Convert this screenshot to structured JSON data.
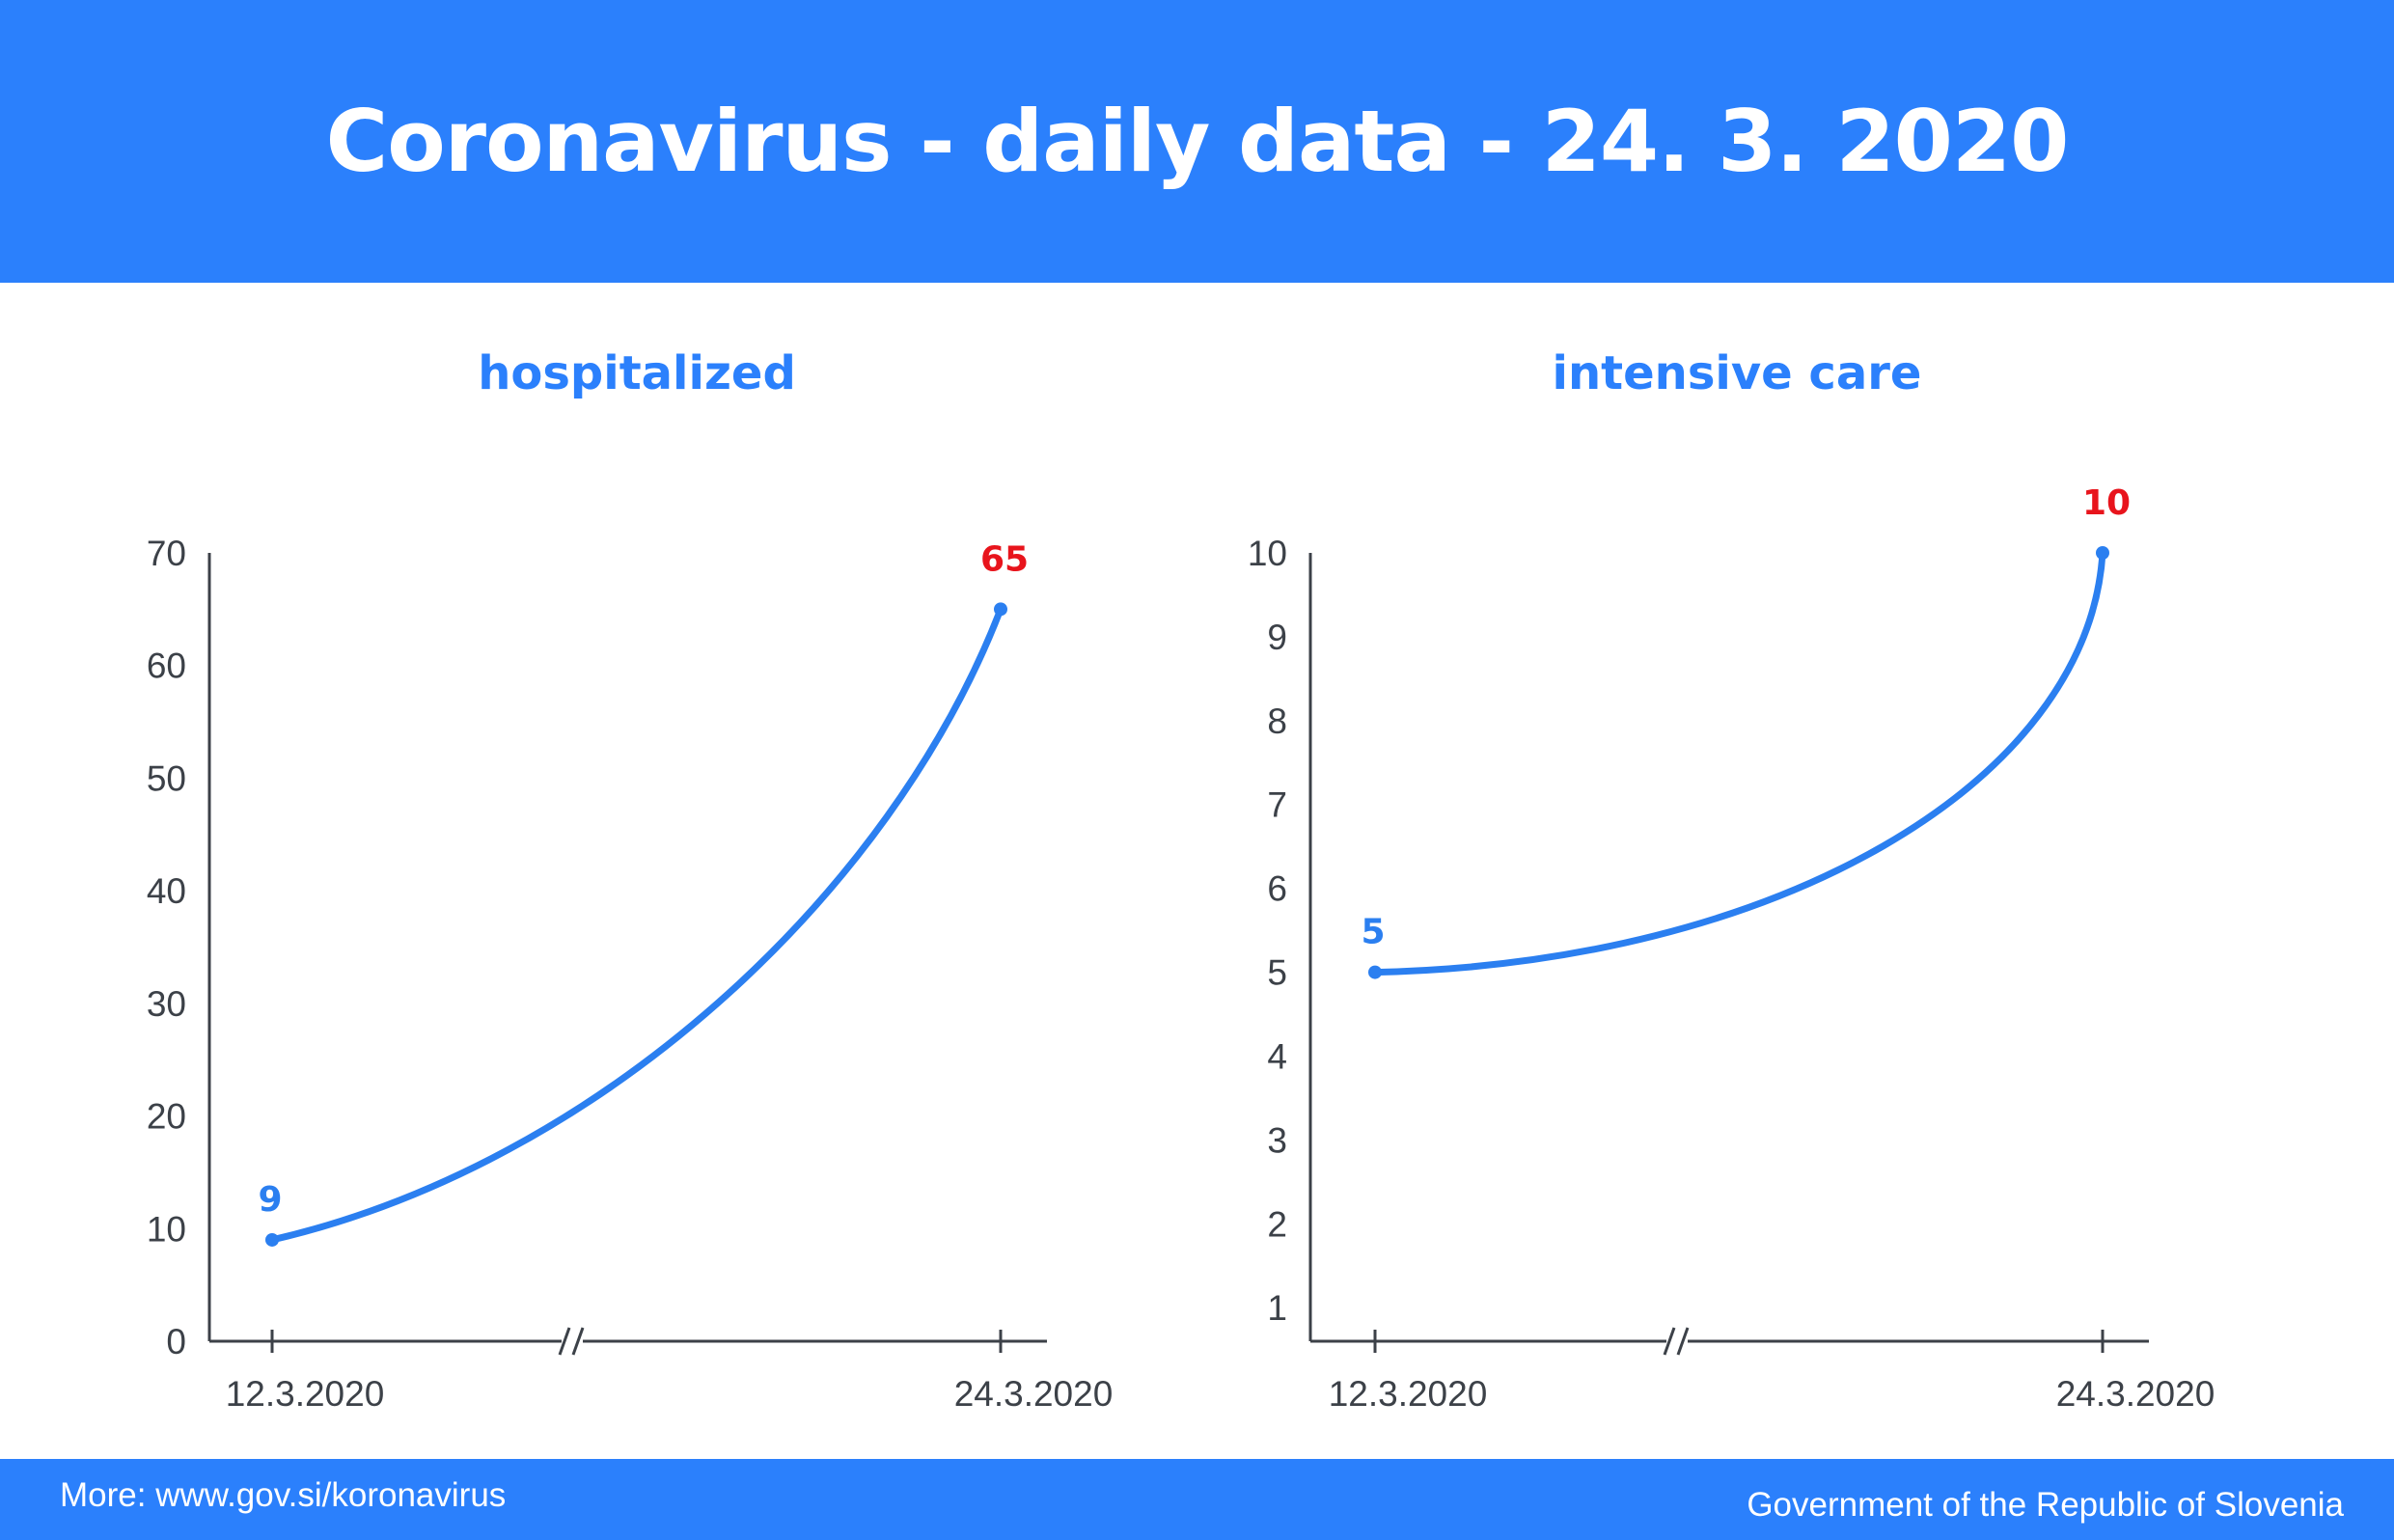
{
  "header": {
    "title": "Coronavirus - daily data - 24. 3. 2020"
  },
  "footer": {
    "more": "More: www.gov.si/koronavirus",
    "org": "Government of the Republic of Slovenia"
  },
  "colors": {
    "brand": "#2b80fc",
    "line": "#2b7ff0",
    "highlight": "#e8141c",
    "axis": "#3c4148",
    "tick_text": "#3c4148"
  },
  "chart_data": [
    {
      "type": "line",
      "title": "hospitalized",
      "x": [
        "12.3.2020",
        "24.3.2020"
      ],
      "series": [
        {
          "values": [
            9,
            65
          ]
        }
      ],
      "ylim": [
        0,
        70
      ],
      "yticks": [
        0,
        10,
        20,
        30,
        40,
        50,
        60,
        70
      ],
      "xticks": [
        "12.3.2020",
        "24.3.2020"
      ],
      "point_labels": [
        "9",
        "65"
      ],
      "axis_break": true,
      "grid": false
    },
    {
      "type": "line",
      "title": "intensive care",
      "x": [
        "12.3.2020",
        "24.3.2020"
      ],
      "series": [
        {
          "values": [
            5,
            10
          ]
        }
      ],
      "ylim": [
        0.6,
        10
      ],
      "yticks": [
        1,
        2,
        3,
        4,
        5,
        6,
        7,
        8,
        9,
        10
      ],
      "xticks": [
        "12.3.2020",
        "24.3.2020"
      ],
      "point_labels": [
        "5",
        "10"
      ],
      "axis_break": true,
      "grid": false
    }
  ]
}
